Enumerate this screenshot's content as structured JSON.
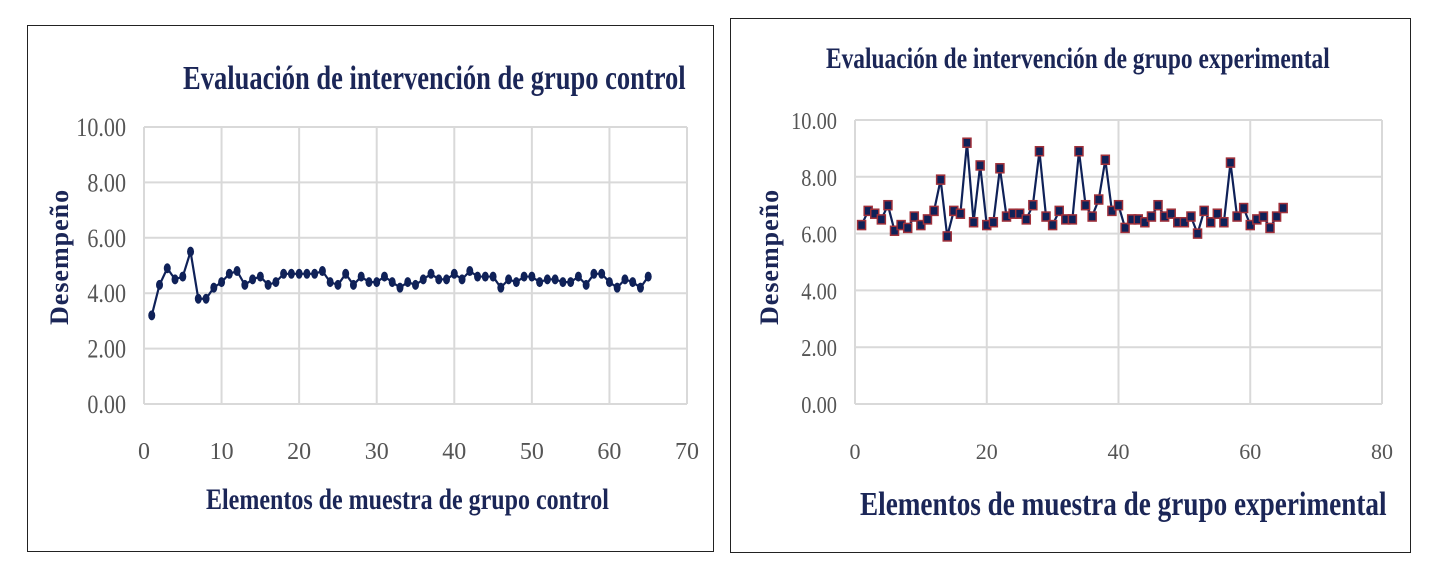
{
  "chart_data": [
    {
      "type": "line",
      "title": "Evaluación de intervención de grupo control",
      "xlabel": "Elementos de muestra de grupo control",
      "ylabel": "Desempeño",
      "xlim": [
        0,
        70
      ],
      "ylim": [
        0,
        10
      ],
      "xticks": [
        "0",
        "10",
        "20",
        "30",
        "40",
        "50",
        "60",
        "70"
      ],
      "yticks": [
        "0.00",
        "2.00",
        "4.00",
        "6.00",
        "8.00",
        "10.00"
      ],
      "grid": true,
      "marker": "circle",
      "line_color": "#0f2158",
      "series": [
        {
          "name": "Desempeño",
          "x_start": 1,
          "values": [
            3.2,
            4.3,
            4.9,
            4.5,
            4.6,
            5.5,
            3.8,
            3.8,
            4.2,
            4.4,
            4.7,
            4.8,
            4.3,
            4.5,
            4.6,
            4.3,
            4.4,
            4.7,
            4.7,
            4.7,
            4.7,
            4.7,
            4.8,
            4.4,
            4.3,
            4.7,
            4.3,
            4.6,
            4.4,
            4.4,
            4.6,
            4.4,
            4.2,
            4.4,
            4.3,
            4.5,
            4.7,
            4.5,
            4.5,
            4.7,
            4.5,
            4.8,
            4.6,
            4.6,
            4.6,
            4.2,
            4.5,
            4.4,
            4.6,
            4.6,
            4.4,
            4.5,
            4.5,
            4.4,
            4.4,
            4.6,
            4.3,
            4.7,
            4.7,
            4.4,
            4.2,
            4.5,
            4.4,
            4.2,
            4.6
          ]
        }
      ]
    },
    {
      "type": "line",
      "title": "Evaluación de intervención de grupo experimental",
      "xlabel": "Elementos de muestra de grupo experimental",
      "ylabel": "Desempeño",
      "xlim": [
        0,
        80
      ],
      "ylim": [
        0,
        10
      ],
      "xticks": [
        "0",
        "20",
        "40",
        "60",
        "80"
      ],
      "yticks": [
        "0.00",
        "2.00",
        "4.00",
        "6.00",
        "8.00",
        "10.00"
      ],
      "grid": true,
      "marker": "square",
      "line_color": "#0f2158",
      "marker_edge": "#a0303a",
      "series": [
        {
          "name": "Desempeño",
          "x_start": 1,
          "values": [
            6.3,
            6.8,
            6.7,
            6.5,
            7.0,
            6.1,
            6.3,
            6.2,
            6.6,
            6.3,
            6.5,
            6.8,
            7.9,
            5.9,
            6.8,
            6.7,
            9.2,
            6.4,
            8.4,
            6.3,
            6.4,
            8.3,
            6.6,
            6.7,
            6.7,
            6.5,
            7.0,
            8.9,
            6.6,
            6.3,
            6.8,
            6.5,
            6.5,
            8.9,
            7.0,
            6.6,
            7.2,
            8.6,
            6.8,
            7.0,
            6.2,
            6.5,
            6.5,
            6.4,
            6.6,
            7.0,
            6.6,
            6.7,
            6.4,
            6.4,
            6.6,
            6.0,
            6.8,
            6.4,
            6.7,
            6.4,
            8.5,
            6.6,
            6.9,
            6.3,
            6.5,
            6.6,
            6.2,
            6.6,
            6.9
          ]
        }
      ]
    }
  ]
}
